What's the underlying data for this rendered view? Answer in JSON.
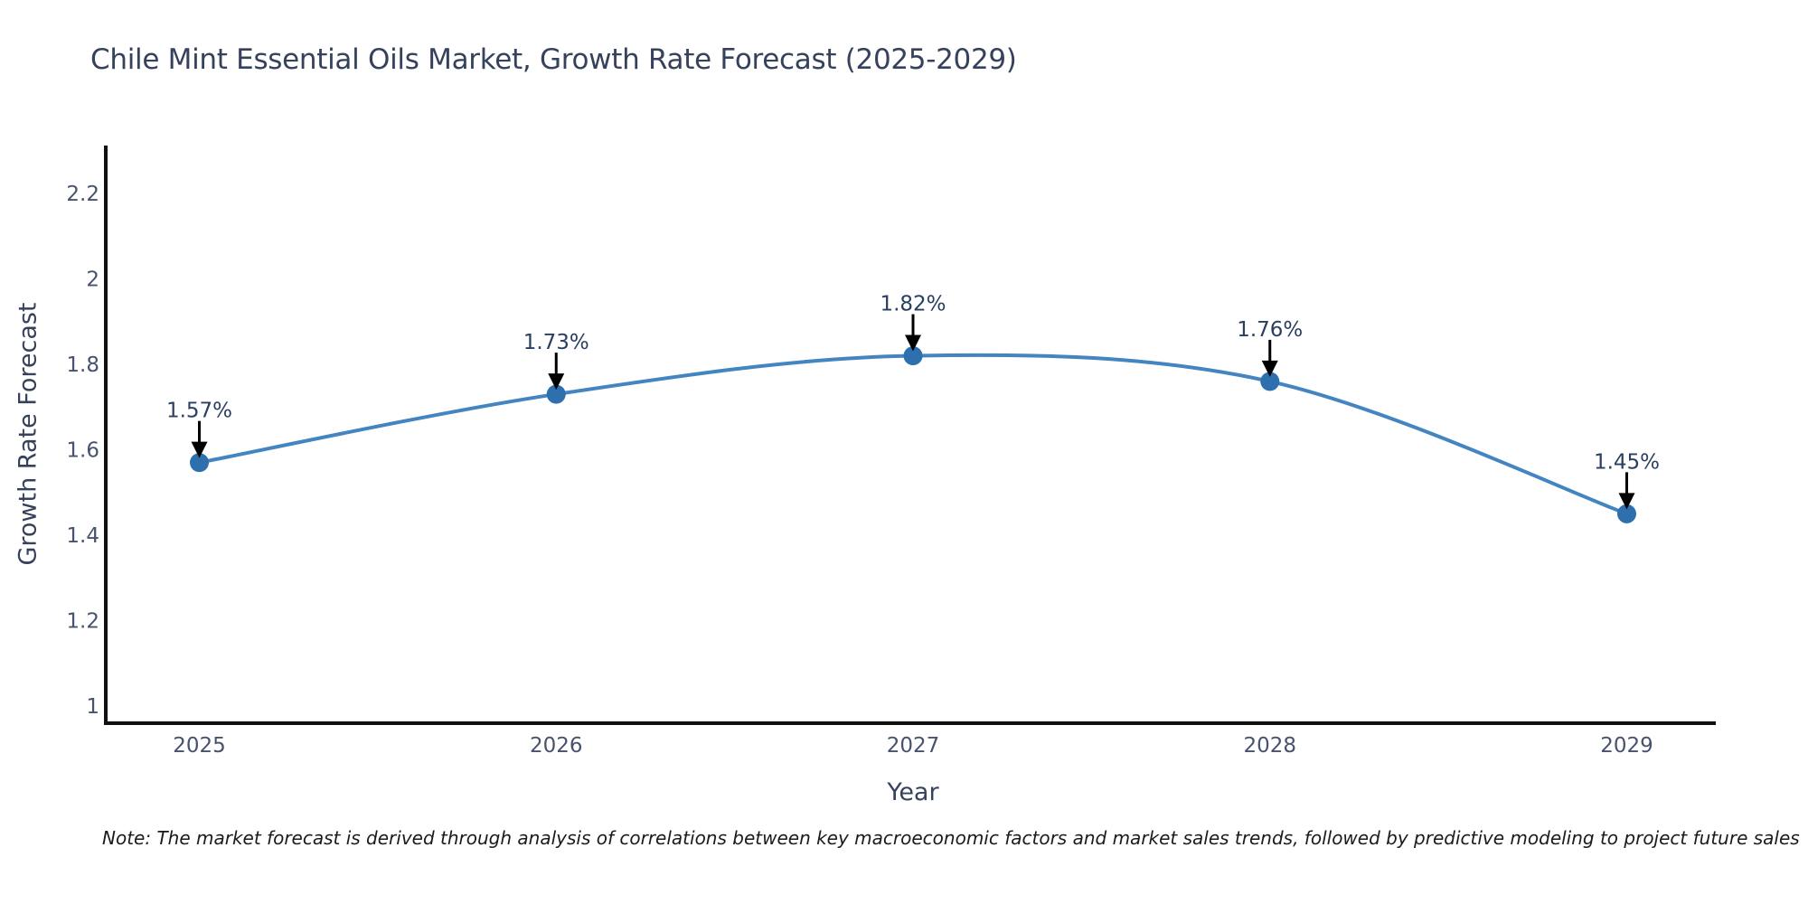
{
  "note": "Note: The market forecast is derived through analysis of correlations between key macroeconomic factors and market sales trends, followed by predictive modeling to project future sales",
  "chart_data": {
    "type": "line",
    "title": "Chile Mint Essential Oils Market, Growth Rate Forecast (2025-2029)",
    "xlabel": "Year",
    "ylabel": "Growth Rate Forecast",
    "x": [
      2025,
      2026,
      2027,
      2028,
      2029
    ],
    "values": [
      1.57,
      1.73,
      1.82,
      1.76,
      1.45
    ],
    "point_labels": [
      "1.57%",
      "1.73%",
      "1.82%",
      "1.76%",
      "1.45%"
    ],
    "yticks": [
      2.2,
      2,
      1.8,
      1.6,
      1.4,
      1.2,
      1
    ],
    "ylim": [
      0.95,
      2.31
    ],
    "line_shape": "spline",
    "grid": false,
    "legend_position": "none",
    "colors": {
      "line": "#4385c1",
      "marker": "#2e6fae",
      "arrow": "#000000",
      "axis": "#111111",
      "title_text": "#36415c",
      "tick_text": "#47536e",
      "note_text": "#1b1b1b"
    }
  }
}
